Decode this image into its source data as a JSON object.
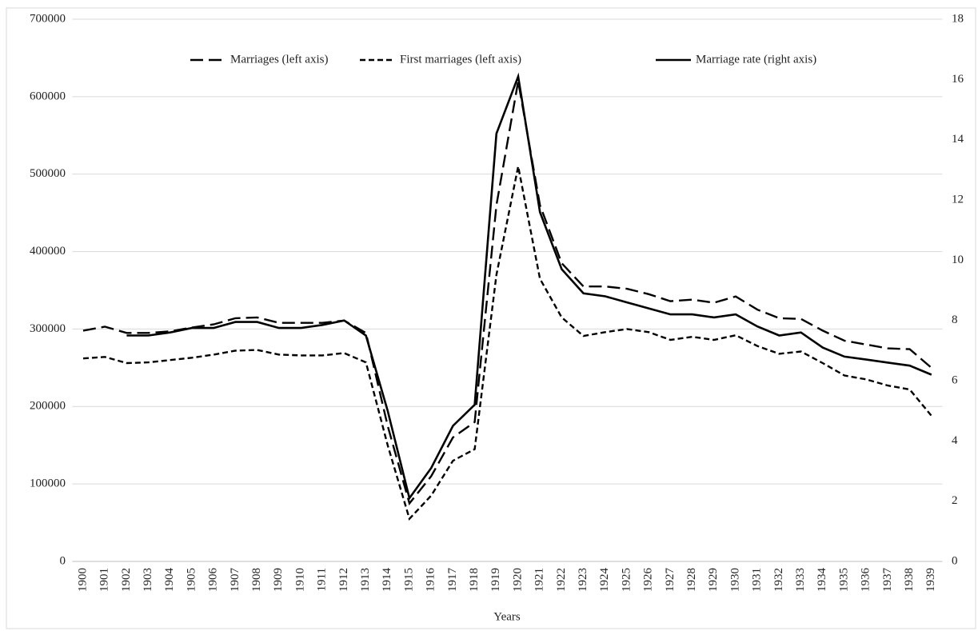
{
  "chart_data": {
    "type": "line",
    "x_label": "Years",
    "categories": [
      "1900",
      "1901",
      "1902",
      "1903",
      "1904",
      "1905",
      "1906",
      "1907",
      "1908",
      "1909",
      "1910",
      "1911",
      "1912",
      "1913",
      "1914",
      "1915",
      "1916",
      "1917",
      "1918",
      "1919",
      "1920",
      "1921",
      "1922",
      "1923",
      "1924",
      "1925",
      "1926",
      "1927",
      "1928",
      "1929",
      "1930",
      "1931",
      "1932",
      "1933",
      "1934",
      "1935",
      "1936",
      "1937",
      "1938",
      "1939"
    ],
    "series": [
      {
        "name": "Marriages (left axis)",
        "color": "#000000",
        "dash": "long",
        "axis": "y",
        "values": [
          298000,
          303000,
          295000,
          295000,
          297000,
          302000,
          306000,
          314000,
          315000,
          308000,
          308000,
          308000,
          311000,
          295000,
          175000,
          75000,
          110000,
          160000,
          180000,
          460000,
          620000,
          460000,
          385000,
          355000,
          355000,
          352000,
          345000,
          336000,
          338000,
          334000,
          342000,
          325000,
          314000,
          313000,
          298000,
          285000,
          280000,
          275000,
          274000,
          250000
        ]
      },
      {
        "name": "First marriages (left axis)",
        "color": "#000000",
        "dash": "short",
        "axis": "y",
        "values": [
          262000,
          264000,
          256000,
          257000,
          260000,
          263000,
          267000,
          272000,
          273000,
          267000,
          266000,
          266000,
          269000,
          257000,
          150000,
          55000,
          85000,
          130000,
          145000,
          370000,
          510000,
          365000,
          315000,
          291000,
          296000,
          300000,
          296000,
          286000,
          290000,
          286000,
          292000,
          278000,
          268000,
          271000,
          256000,
          240000,
          235000,
          227000,
          222000,
          188000
        ]
      },
      {
        "name": "Marriage rate (right axis)",
        "color": "#000000",
        "dash": "solid",
        "axis": "y2",
        "values": [
          null,
          null,
          7.5,
          7.5,
          7.6,
          7.75,
          7.75,
          7.95,
          7.95,
          7.75,
          7.75,
          7.85,
          8.0,
          7.5,
          5.0,
          2.1,
          3.1,
          4.5,
          5.2,
          14.2,
          16.1,
          11.6,
          9.7,
          8.9,
          8.8,
          8.6,
          8.4,
          8.2,
          8.2,
          8.1,
          8.2,
          7.8,
          7.5,
          7.6,
          7.1,
          6.8,
          6.7,
          6.6,
          6.5,
          6.2
        ]
      }
    ],
    "ylim": [
      0,
      700000
    ],
    "yticks": [
      0,
      100000,
      200000,
      300000,
      400000,
      500000,
      600000,
      700000
    ],
    "y2lim": [
      0,
      18
    ],
    "y2ticks": [
      0,
      2,
      4,
      6,
      8,
      10,
      12,
      14,
      16,
      18
    ],
    "grid": true,
    "legend": "top"
  }
}
